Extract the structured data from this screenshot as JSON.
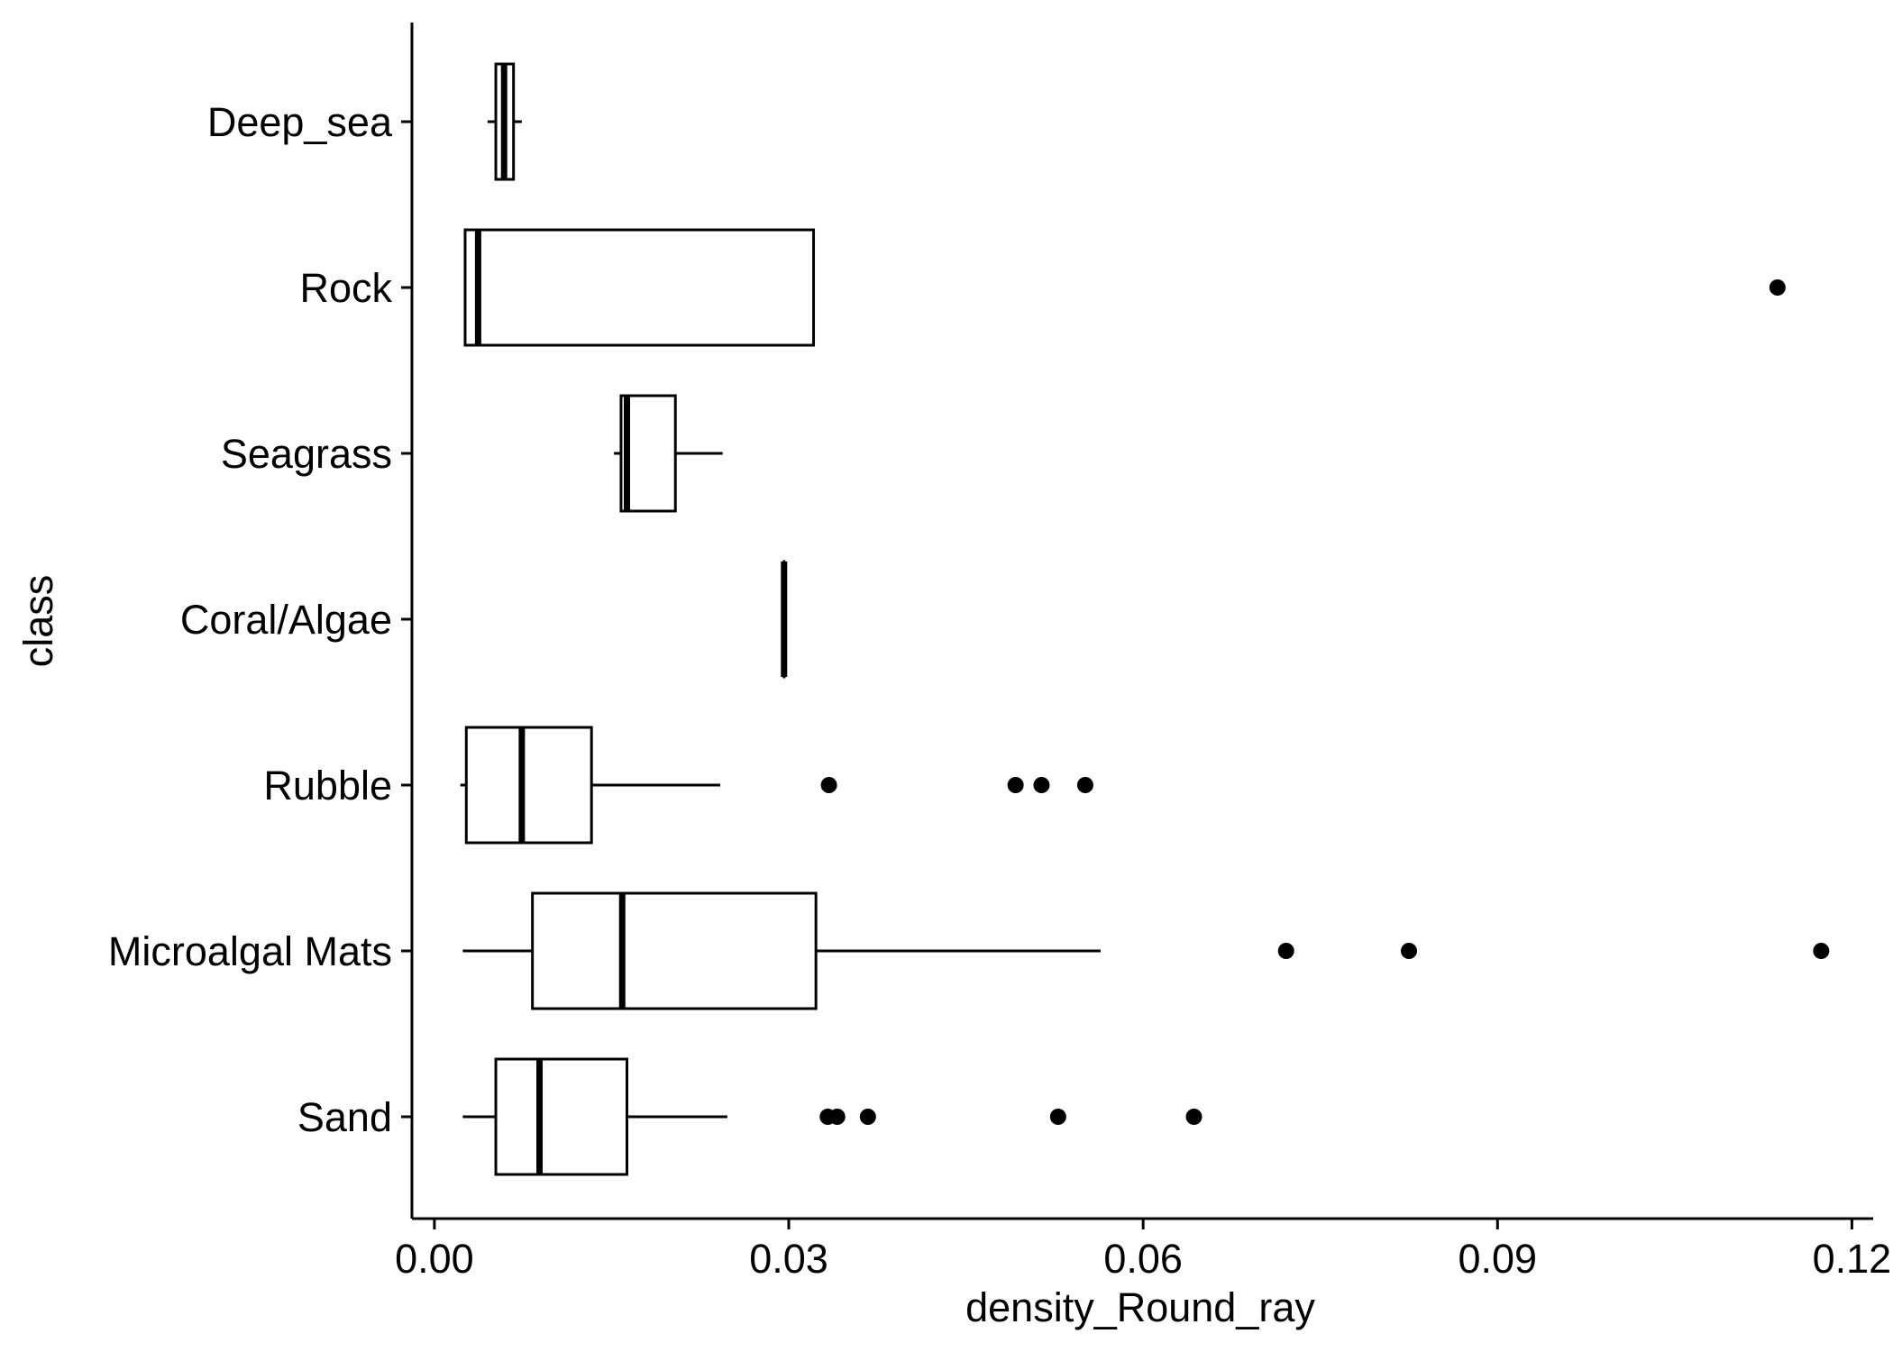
{
  "chart_data": {
    "type": "boxplot",
    "orientation": "horizontal",
    "title": "",
    "xlabel": "density_Round_ray",
    "ylabel": "class",
    "xlim": [
      -0.0019,
      0.1218
    ],
    "x_ticks": [
      0.0,
      0.03,
      0.06,
      0.09,
      0.12
    ],
    "x_tick_labels": [
      "0.00",
      "0.03",
      "0.06",
      "0.09",
      "0.12"
    ],
    "grid": false,
    "legend": "none",
    "categories": [
      "Deep_sea",
      "Rock",
      "Seagrass",
      "Coral/Algae",
      "Rubble",
      "Microalgal Mats",
      "Sand"
    ],
    "boxes": [
      {
        "category": "Deep_sea",
        "whisker_low": 0.0045,
        "q1": 0.0052,
        "median": 0.0059,
        "q3": 0.0067,
        "whisker_high": 0.0074,
        "outliers": []
      },
      {
        "category": "Rock",
        "whisker_low": 0.0026,
        "q1": 0.0026,
        "median": 0.0037,
        "q3": 0.0321,
        "whisker_high": 0.0321,
        "outliers": [
          0.1137
        ]
      },
      {
        "category": "Seagrass",
        "whisker_low": 0.0152,
        "q1": 0.0158,
        "median": 0.0163,
        "q3": 0.0204,
        "whisker_high": 0.0244,
        "outliers": []
      },
      {
        "category": "Coral/Algae",
        "whisker_low": 0.0296,
        "q1": 0.0296,
        "median": 0.0296,
        "q3": 0.0296,
        "whisker_high": 0.0296,
        "outliers": []
      },
      {
        "category": "Rubble",
        "whisker_low": 0.0022,
        "q1": 0.0027,
        "median": 0.0074,
        "q3": 0.0133,
        "whisker_high": 0.0242,
        "outliers": [
          0.0334,
          0.0492,
          0.0514,
          0.0551
        ]
      },
      {
        "category": "Microalgal Mats",
        "whisker_low": 0.0024,
        "q1": 0.0083,
        "median": 0.0159,
        "q3": 0.0323,
        "whisker_high": 0.0564,
        "outliers": [
          0.0721,
          0.0825,
          0.1174
        ]
      },
      {
        "category": "Sand",
        "whisker_low": 0.0024,
        "q1": 0.0052,
        "median": 0.0089,
        "q3": 0.0163,
        "whisker_high": 0.0248,
        "outliers": [
          0.0333,
          0.0341,
          0.0367,
          0.0528,
          0.0643
        ]
      }
    ],
    "colors": {
      "stroke": "#000000",
      "fill": "#ffffff",
      "point": "#000000"
    }
  }
}
